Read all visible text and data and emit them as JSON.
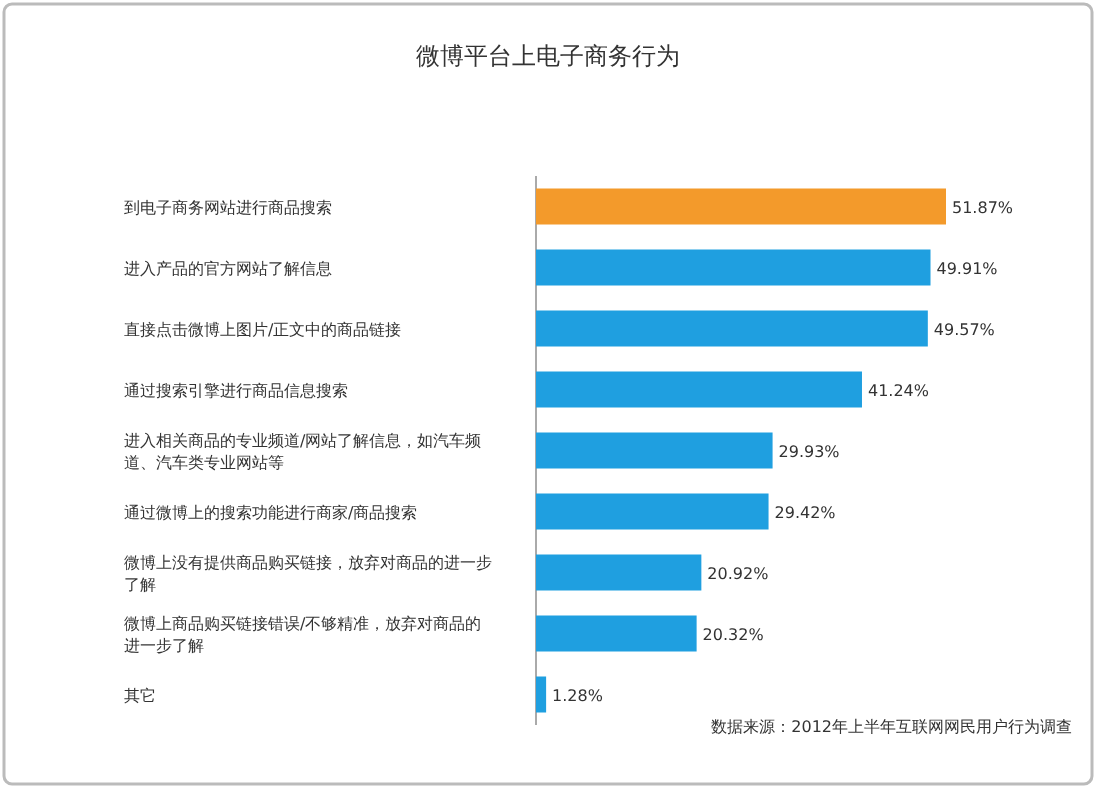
{
  "chart_data": {
    "type": "bar",
    "orientation": "horizontal",
    "title": "微博平台上电子商务行为",
    "categories": [
      "到电子商务网站进行商品搜索",
      "进入产品的官方网站了解信息",
      "直接点击微博上图片/正文中的商品链接",
      "通过搜索引擎进行商品信息搜索",
      "进入相关商品的专业频道/网站了解信息，如汽车频道、汽车类专业网站等",
      "通过微博上的搜索功能进行商家/商品搜索",
      "微博上没有提供商品购买链接，放弃对商品的进一步了解",
      "微博上商品购买链接错误/不够精准，放弃对商品的进一步了解",
      "其它"
    ],
    "values": [
      51.87,
      49.91,
      49.57,
      41.24,
      29.93,
      29.42,
      20.92,
      20.32,
      1.28
    ],
    "colors": [
      "#f39a2b",
      "#1f9fe0",
      "#1f9fe0",
      "#1f9fe0",
      "#1f9fe0",
      "#1f9fe0",
      "#1f9fe0",
      "#1f9fe0",
      "#1f9fe0"
    ],
    "value_labels": [
      "51.87%",
      "49.91%",
      "49.57%",
      "41.24%",
      "29.93%",
      "29.42%",
      "20.92%",
      "20.32%",
      "1.28%"
    ],
    "annotations": [
      "数据来源：2012年上半年互联网网民用户行为调查"
    ]
  }
}
